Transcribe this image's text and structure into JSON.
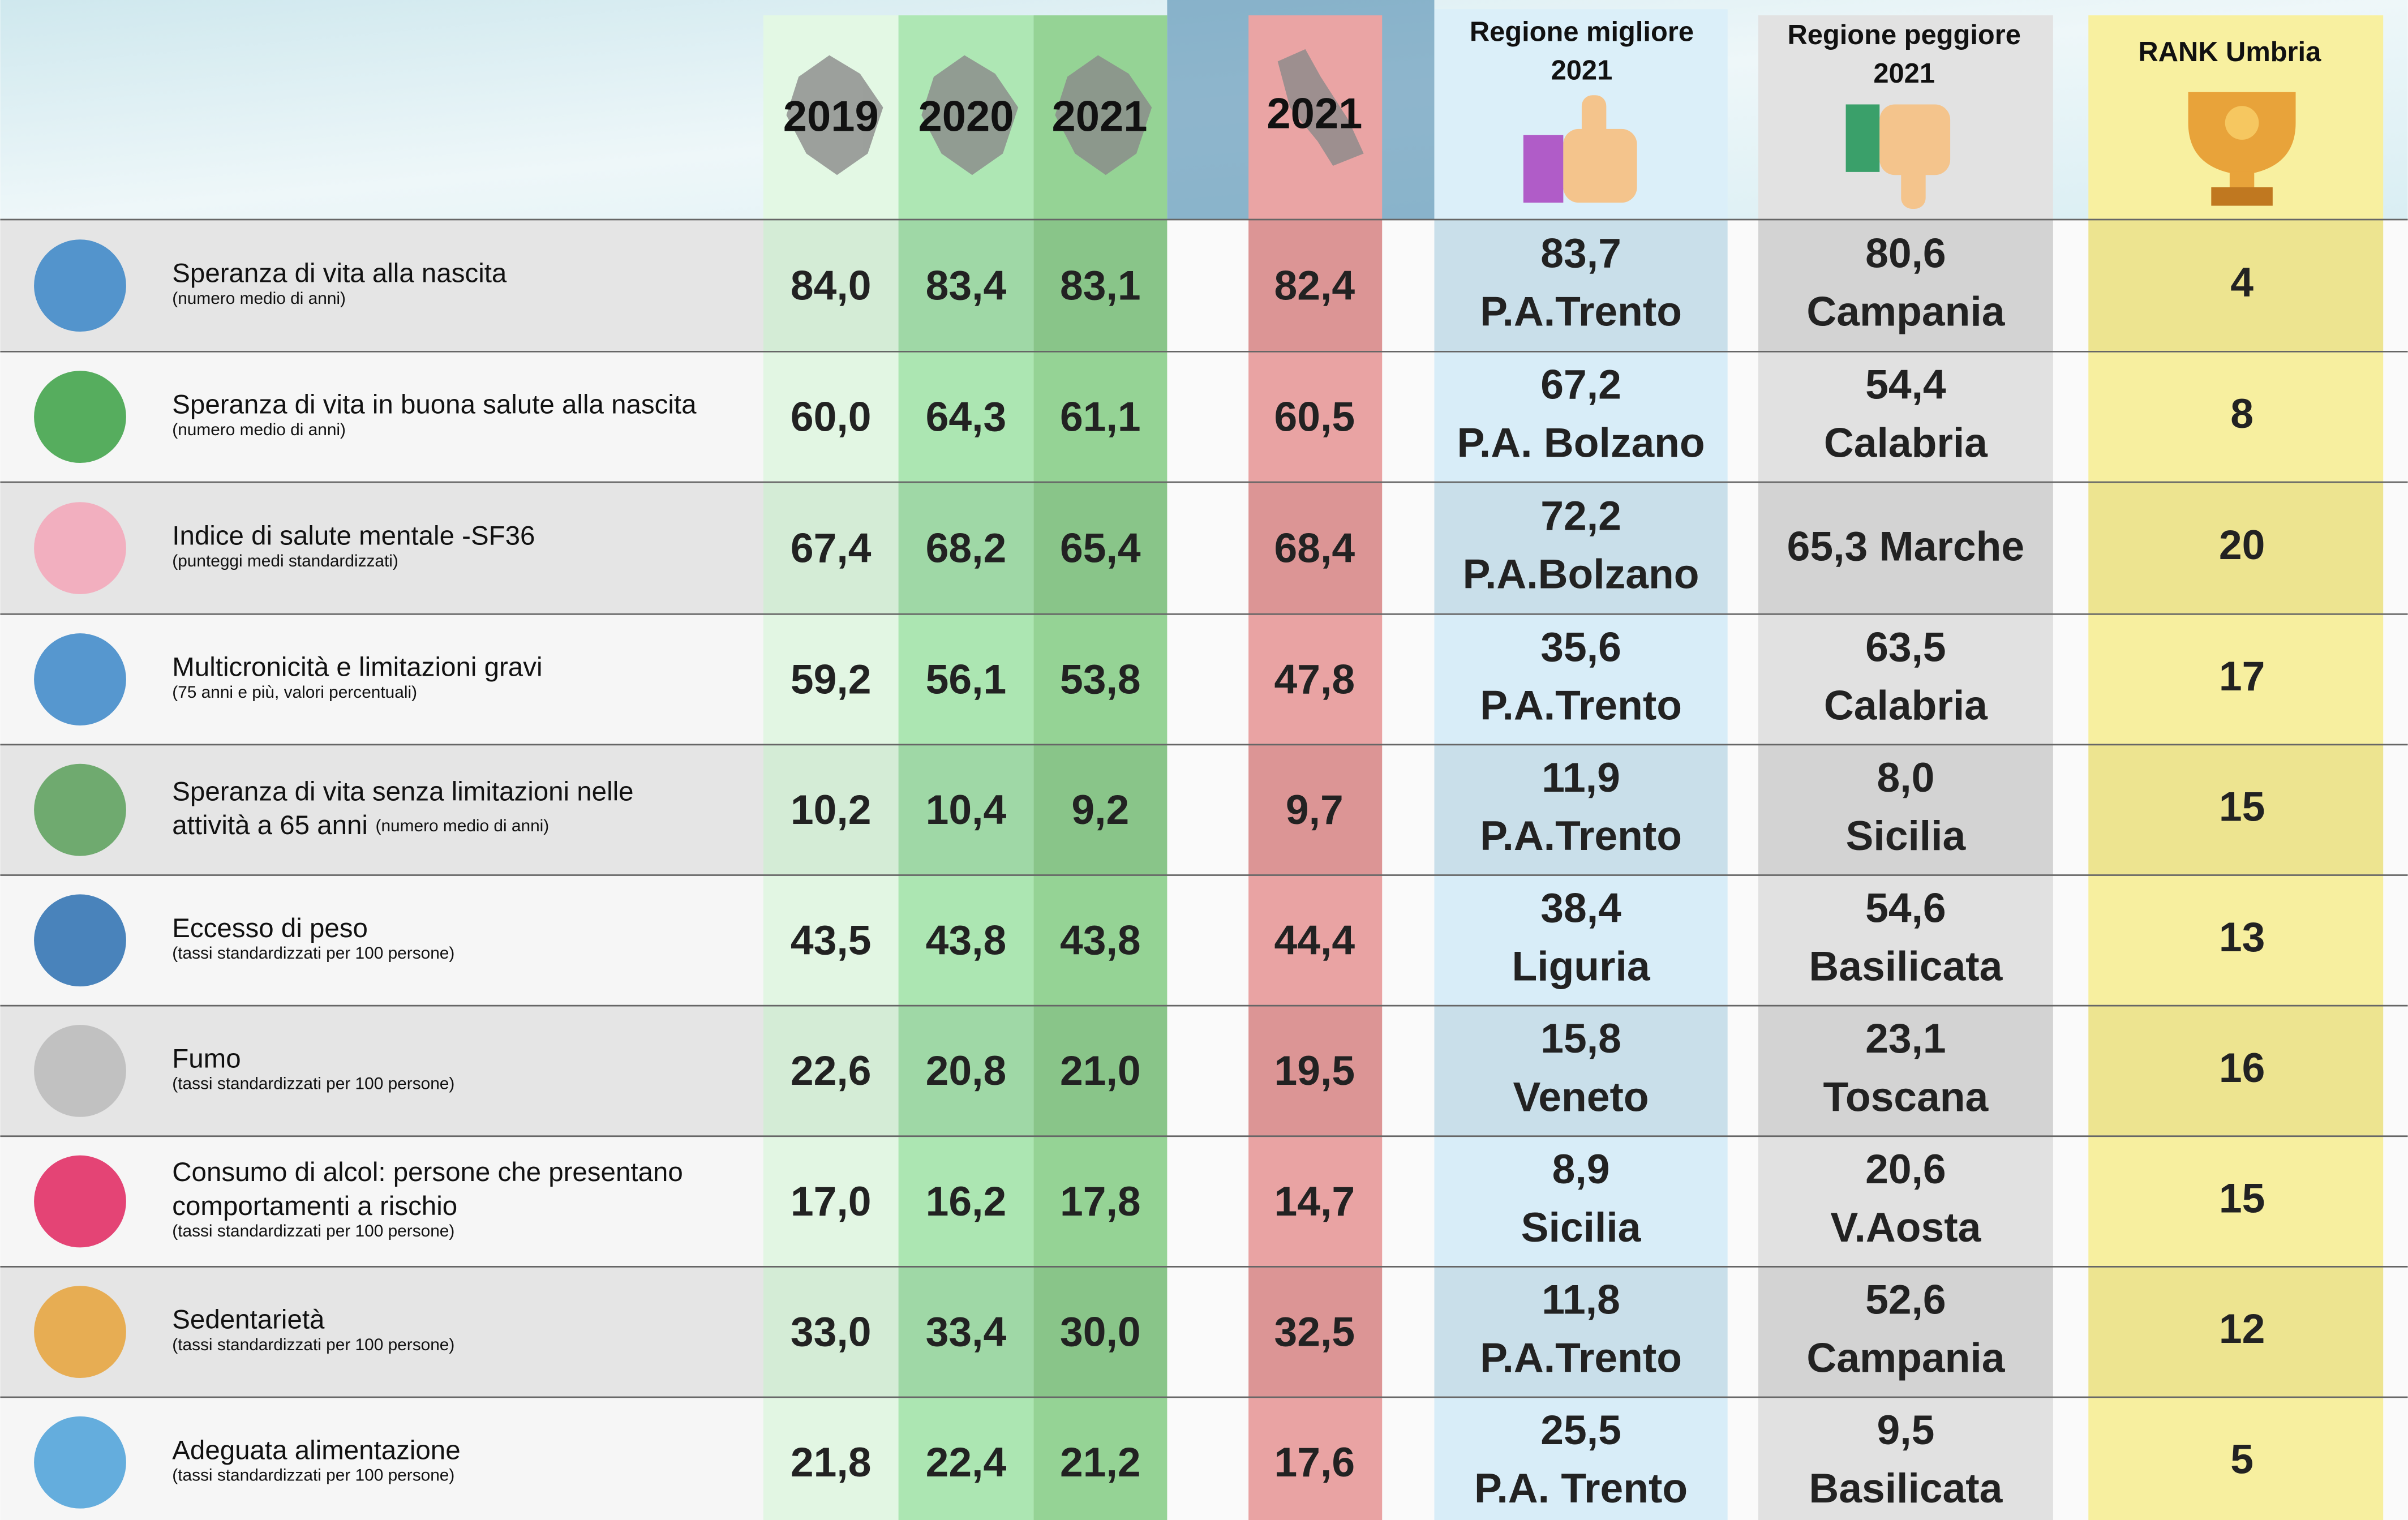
{
  "header": {
    "years": [
      "2019",
      "2020",
      "2021"
    ],
    "italia": "2021",
    "best": [
      "Regione migliore",
      "2021"
    ],
    "worst": [
      "Regione peggiore",
      "2021"
    ],
    "rank": "RANK Umbria"
  },
  "rows": [
    {
      "label": [
        "Speranza di vita alla nascita"
      ],
      "note": "(numero medio di anni)",
      "umbria": [
        "84,0",
        "83,4",
        "83,1"
      ],
      "italia": "82,4",
      "best": [
        "83,7",
        "P.A.Trento"
      ],
      "worst": [
        "80,6",
        "Campania"
      ],
      "rank": "4"
    },
    {
      "label": [
        "Speranza di vita in buona salute alla nascita"
      ],
      "note": "(numero medio di anni)",
      "umbria": [
        "60,0",
        "64,3",
        "61,1"
      ],
      "italia": "60,5",
      "best": [
        "67,2",
        "P.A. Bolzano"
      ],
      "worst": [
        "54,4",
        "Calabria"
      ],
      "rank": "8"
    },
    {
      "label": [
        "Indice di salute mentale -SF36"
      ],
      "note": "(punteggi medi standardizzati)",
      "umbria": [
        "67,4",
        "68,2",
        "65,4"
      ],
      "italia": "68,4",
      "best": [
        "72,2",
        "P.A.Bolzano"
      ],
      "worst": [
        "65,3 Marche"
      ],
      "rank": "20"
    },
    {
      "label": [
        "Multicronicità e limitazioni gravi"
      ],
      "note": "(75 anni e più, valori percentuali)",
      "umbria": [
        "59,2",
        "56,1",
        "53,8"
      ],
      "italia": "47,8",
      "best": [
        "35,6",
        "P.A.Trento"
      ],
      "worst": [
        "63,5",
        "Calabria"
      ],
      "rank": "17"
    },
    {
      "label": [
        "Speranza di vita senza limitazioni nelle",
        "attività a 65 anni"
      ],
      "note": "(numero medio di anni)",
      "umbria": [
        "10,2",
        "10,4",
        "9,2"
      ],
      "italia": "9,7",
      "best": [
        "11,9",
        "P.A.Trento"
      ],
      "worst": [
        "8,0",
        "Sicilia"
      ],
      "rank": "15"
    },
    {
      "label": [
        "Eccesso di peso"
      ],
      "note": "(tassi standardizzati per 100 persone)",
      "umbria": [
        "43,5",
        "43,8",
        "43,8"
      ],
      "italia": "44,4",
      "best": [
        "38,4",
        "Liguria"
      ],
      "worst": [
        "54,6",
        "Basilicata"
      ],
      "rank": "13"
    },
    {
      "label": [
        "Fumo"
      ],
      "note": "(tassi standardizzati per 100 persone)",
      "umbria": [
        "22,6",
        "20,8",
        "21,0"
      ],
      "italia": "19,5",
      "best": [
        "15,8",
        "Veneto"
      ],
      "worst": [
        "23,1",
        "Toscana"
      ],
      "rank": "16"
    },
    {
      "label": [
        "Consumo di alcol: persone che presentano",
        "comportamenti a rischio"
      ],
      "note": "(tassi standardizzati per 100 persone)",
      "umbria": [
        "17,0",
        "16,2",
        "17,8"
      ],
      "italia": "14,7",
      "best": [
        "8,9",
        "Sicilia"
      ],
      "worst": [
        "20,6",
        "V.Aosta"
      ],
      "rank": "15"
    },
    {
      "label": [
        "Sedentarietà"
      ],
      "note": "(tassi standardizzati per 100 persone)",
      "umbria": [
        "33,0",
        "33,4",
        "30,0"
      ],
      "italia": "32,5",
      "best": [
        "11,8",
        "P.A.Trento"
      ],
      "worst": [
        "52,6",
        "Campania"
      ],
      "rank": "12"
    },
    {
      "label": [
        "Adeguata alimentazione"
      ],
      "note": "(tassi standardizzati per 100 persone)",
      "umbria": [
        "21,8",
        "22,4",
        "21,2"
      ],
      "italia": "17,6",
      "best": [
        "25,5",
        "P.A. Trento"
      ],
      "worst": [
        "9,5",
        "Basilicata"
      ],
      "rank": "5"
    }
  ]
}
